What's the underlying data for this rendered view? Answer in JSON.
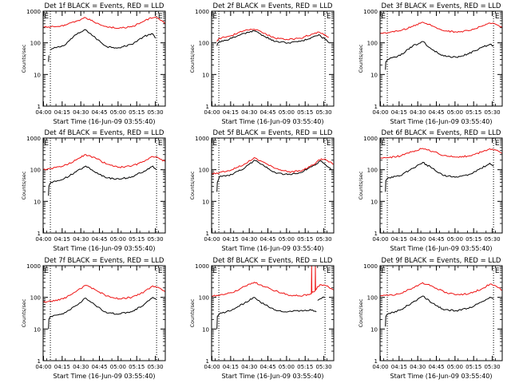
{
  "figure": {
    "colors": {
      "events": "#000000",
      "lld": "#ee1111",
      "axes": "#000000"
    }
  },
  "chart_data": [
    {
      "type": "line",
      "title": "Det 1f BLACK = Events, RED = LLD",
      "xlabel": "Start Time (16-Jun-09 03:55:40)",
      "ylabel": "Counts/sec",
      "xticks": [
        "04:00",
        "04:15",
        "04:30",
        "04:45",
        "05:00",
        "05:15",
        "05:30"
      ],
      "yticks": [
        "1",
        "10",
        "100",
        "1000"
      ],
      "yscale": "log",
      "ylim": [
        1,
        1000
      ],
      "xlim_minutes": [
        3.67,
        102
      ],
      "markers": [
        {
          "minute": 9.5
        },
        {
          "minute": 95
        }
      ],
      "flags": [
        {
          "minute": 3.9,
          "label": "E"
        },
        {
          "minute": 95.5,
          "label": "E"
        }
      ],
      "series": [
        {
          "name": "BLACK",
          "gaps": [
            9.5
          ],
          "x": [
            8,
            8.3,
            9.5,
            11,
            20,
            30,
            38,
            46,
            55,
            65,
            75,
            85,
            92,
            94
          ],
          "y": [
            25,
            40,
            60,
            65,
            80,
            180,
            260,
            140,
            75,
            70,
            90,
            160,
            190,
            140
          ]
        },
        {
          "name": "RED",
          "x": [
            3.67,
            10,
            20,
            30,
            38,
            45,
            55,
            65,
            75,
            85,
            90,
            95,
            98,
            102
          ],
          "y": [
            310,
            320,
            340,
            480,
            620,
            450,
            320,
            290,
            320,
            480,
            620,
            640,
            520,
            400
          ]
        }
      ]
    },
    {
      "type": "line",
      "title": "Det 2f BLACK = Events, RED = LLD",
      "xlabel": "Start Time (16-Jun-09 03:55:40)",
      "ylabel": "Counts/sec",
      "xticks": [
        "04:00",
        "04:15",
        "04:30",
        "04:45",
        "05:00",
        "05:15",
        "05:30"
      ],
      "yticks": [
        "1",
        "10",
        "100",
        "1000"
      ],
      "yscale": "log",
      "ylim": [
        1,
        1000
      ],
      "xlim_minutes": [
        3.67,
        102
      ],
      "markers": [
        {
          "minute": 9.5
        },
        {
          "minute": 95
        }
      ],
      "flags": [
        {
          "minute": 3.9,
          "label": "E"
        },
        {
          "minute": 95.5,
          "label": "E"
        }
      ],
      "series": [
        {
          "name": "BLACK",
          "x": [
            8,
            8.5,
            10,
            15,
            20,
            25,
            30,
            38,
            46,
            55,
            65,
            75,
            85,
            90,
            95,
            98
          ],
          "y": [
            80,
            95,
            110,
            120,
            140,
            170,
            200,
            240,
            160,
            110,
            100,
            110,
            150,
            180,
            130,
            100
          ]
        },
        {
          "name": "RED",
          "x": [
            8,
            8.5,
            10,
            15,
            20,
            25,
            30,
            38,
            46,
            55,
            65,
            75,
            85,
            90,
            95,
            98
          ],
          "y": [
            110,
            120,
            140,
            150,
            170,
            210,
            240,
            270,
            200,
            140,
            125,
            140,
            190,
            220,
            180,
            150
          ]
        }
      ]
    },
    {
      "type": "line",
      "title": "Det 3f BLACK = Events, RED = LLD",
      "xlabel": "Start Time (16-Jun-09 03:55:40)",
      "ylabel": "Counts/sec",
      "xticks": [
        "04:00",
        "04:15",
        "04:30",
        "04:45",
        "05:00",
        "05:15",
        "05:30"
      ],
      "yticks": [
        "1",
        "10",
        "100",
        "1000"
      ],
      "yscale": "log",
      "ylim": [
        1,
        1000
      ],
      "xlim_minutes": [
        3.67,
        102
      ],
      "markers": [
        {
          "minute": 9.5
        },
        {
          "minute": 95
        }
      ],
      "flags": [
        {
          "minute": 3.9,
          "label": "E"
        },
        {
          "minute": 95.5,
          "label": "E"
        }
      ],
      "series": [
        {
          "name": "BLACK",
          "x": [
            8,
            8.3,
            10,
            20,
            30,
            38,
            46,
            55,
            65,
            75,
            85,
            92,
            95
          ],
          "y": [
            14,
            25,
            30,
            40,
            80,
            110,
            60,
            38,
            35,
            45,
            70,
            90,
            80
          ]
        },
        {
          "name": "RED",
          "x": [
            3.67,
            10,
            20,
            30,
            38,
            46,
            55,
            65,
            75,
            85,
            92,
            96,
            102
          ],
          "y": [
            200,
            210,
            240,
            330,
            450,
            340,
            240,
            220,
            240,
            330,
            420,
            400,
            300
          ]
        }
      ]
    },
    {
      "type": "line",
      "title": "Det 4f BLACK = Events, RED = LLD",
      "xlabel": "Start Time (16-Jun-09 03:55:40)",
      "ylabel": "Counts/sec",
      "xticks": [
        "04:00",
        "04:15",
        "04:30",
        "04:45",
        "05:00",
        "05:15",
        "05:30"
      ],
      "yticks": [
        "1",
        "10",
        "100",
        "1000"
      ],
      "yscale": "log",
      "ylim": [
        1,
        1000
      ],
      "xlim_minutes": [
        3.67,
        102
      ],
      "markers": [
        {
          "minute": 9.5
        },
        {
          "minute": 95
        }
      ],
      "flags": [
        {
          "minute": 3.9,
          "label": "E"
        },
        {
          "minute": 95.5,
          "label": "E"
        }
      ],
      "series": [
        {
          "name": "BLACK",
          "x": [
            8,
            8.3,
            10,
            20,
            30,
            38,
            46,
            55,
            65,
            75,
            85,
            92,
            95
          ],
          "y": [
            15,
            30,
            40,
            50,
            85,
            130,
            80,
            55,
            50,
            60,
            90,
            130,
            100
          ]
        },
        {
          "name": "RED",
          "x": [
            3.67,
            10,
            20,
            30,
            38,
            46,
            55,
            65,
            75,
            85,
            92,
            96,
            102
          ],
          "y": [
            100,
            110,
            130,
            200,
            300,
            230,
            150,
            120,
            130,
            180,
            260,
            240,
            180
          ]
        }
      ]
    },
    {
      "type": "line",
      "title": "Det 5f BLACK = Events, RED = LLD",
      "xlabel": "Start Time (16-Jun-09 03:55:40)",
      "ylabel": "Counts/sec",
      "xticks": [
        "04:00",
        "04:15",
        "04:30",
        "04:45",
        "05:00",
        "05:15",
        "05:30"
      ],
      "yticks": [
        "1",
        "10",
        "100",
        "1000"
      ],
      "yscale": "log",
      "ylim": [
        1,
        1000
      ],
      "xlim_minutes": [
        3.67,
        102
      ],
      "markers": [
        {
          "minute": 9.5
        },
        {
          "minute": 95
        }
      ],
      "flags": [
        {
          "minute": 3.9,
          "label": "E"
        },
        {
          "minute": 95.5,
          "label": "E"
        }
      ],
      "series": [
        {
          "name": "BLACK",
          "x": [
            8,
            8.3,
            10,
            20,
            30,
            38,
            46,
            55,
            65,
            75,
            85,
            92,
            95,
            100
          ],
          "y": [
            20,
            40,
            60,
            70,
            110,
            200,
            130,
            80,
            70,
            80,
            130,
            190,
            150,
            100
          ]
        },
        {
          "name": "RED",
          "x": [
            3.67,
            10,
            20,
            30,
            38,
            46,
            55,
            65,
            75,
            85,
            92,
            96,
            102
          ],
          "y": [
            75,
            80,
            100,
            150,
            240,
            170,
            110,
            85,
            90,
            140,
            220,
            200,
            150
          ]
        }
      ]
    },
    {
      "type": "line",
      "title": "Det 6f BLACK = Events, RED = LLD",
      "xlabel": "Start Time (16-Jun-09 03:55:40)",
      "ylabel": "Counts/sec",
      "xticks": [
        "04:00",
        "04:15",
        "04:30",
        "04:45",
        "05:00",
        "05:15",
        "05:30"
      ],
      "yticks": [
        "1",
        "10",
        "100",
        "1000"
      ],
      "yscale": "log",
      "ylim": [
        1,
        1000
      ],
      "xlim_minutes": [
        3.67,
        102
      ],
      "markers": [
        {
          "minute": 9.5
        },
        {
          "minute": 95
        }
      ],
      "flags": [
        {
          "minute": 3.9,
          "label": "E"
        },
        {
          "minute": 95.5,
          "label": "E"
        }
      ],
      "series": [
        {
          "name": "BLACK",
          "x": [
            8,
            8.3,
            10,
            20,
            30,
            38,
            46,
            55,
            65,
            75,
            85,
            92,
            95
          ],
          "y": [
            20,
            45,
            55,
            65,
            110,
            170,
            110,
            65,
            60,
            70,
            110,
            160,
            130
          ]
        },
        {
          "name": "RED",
          "x": [
            3.67,
            10,
            20,
            30,
            38,
            46,
            55,
            65,
            75,
            85,
            92,
            96,
            102
          ],
          "y": [
            230,
            240,
            270,
            380,
            470,
            380,
            280,
            250,
            270,
            360,
            460,
            430,
            330
          ]
        }
      ]
    },
    {
      "type": "line",
      "title": "Det 7f BLACK = Events, RED = LLD",
      "xlabel": "Start Time (16-Jun-09 03:55:40)",
      "ylabel": "Counts/sec",
      "xticks": [
        "04:00",
        "04:15",
        "04:30",
        "04:45",
        "05:00",
        "05:15",
        "05:30"
      ],
      "yticks": [
        "1",
        "10",
        "100",
        "1000"
      ],
      "yscale": "log",
      "ylim": [
        1,
        1000
      ],
      "xlim_minutes": [
        3.67,
        102
      ],
      "markers": [
        {
          "minute": 9.5
        },
        {
          "minute": 95
        }
      ],
      "flags": [
        {
          "minute": 3.9,
          "label": "E"
        },
        {
          "minute": 95.5,
          "label": "E"
        }
      ],
      "series": [
        {
          "name": "BLACK",
          "x": [
            8,
            8.3,
            10,
            20,
            30,
            38,
            46,
            55,
            65,
            75,
            85,
            92,
            95
          ],
          "y": [
            10,
            20,
            25,
            30,
            55,
            95,
            55,
            32,
            30,
            35,
            60,
            100,
            85
          ]
        },
        {
          "name": "RED",
          "x": [
            3.67,
            10,
            20,
            30,
            38,
            46,
            55,
            65,
            75,
            85,
            92,
            96,
            102
          ],
          "y": [
            70,
            75,
            90,
            150,
            240,
            170,
            110,
            90,
            100,
            150,
            230,
            210,
            150
          ]
        }
      ]
    },
    {
      "type": "line",
      "title": "Det 8f BLACK = Events, RED = LLD",
      "xlabel": "Start Time (16-Jun-09 03:55:40)",
      "ylabel": "Counts/sec",
      "xticks": [
        "04:00",
        "04:15",
        "04:30",
        "04:45",
        "05:00",
        "05:15",
        "05:30"
      ],
      "yticks": [
        "1",
        "10",
        "100",
        "1000"
      ],
      "yscale": "log",
      "ylim": [
        1,
        1000
      ],
      "xlim_minutes": [
        3.67,
        102
      ],
      "markers": [
        {
          "minute": 9.5
        },
        {
          "minute": 95
        }
      ],
      "flags": [
        {
          "minute": 3.9,
          "label": "E"
        },
        {
          "minute": 95.5,
          "label": "E"
        }
      ],
      "series": [
        {
          "name": "BLACK",
          "gaps": [
            89
          ],
          "x": [
            8,
            8.3,
            10,
            20,
            30,
            38,
            46,
            55,
            65,
            75,
            85,
            88,
            89,
            91,
            95
          ],
          "y": [
            10,
            25,
            30,
            40,
            65,
            100,
            60,
            40,
            35,
            38,
            40,
            35,
            80,
            90,
            100
          ]
        },
        {
          "name": "RED",
          "x": [
            3.67,
            10,
            20,
            30,
            38,
            46,
            55,
            65,
            75,
            84,
            84.2,
            84.4,
            85,
            87,
            87.2,
            87.4,
            89,
            92,
            96,
            102
          ],
          "y": [
            110,
            115,
            140,
            220,
            300,
            220,
            160,
            120,
            110,
            130,
            1000,
            140,
            150,
            160,
            1000,
            170,
            220,
            250,
            230,
            170
          ]
        }
      ]
    },
    {
      "type": "line",
      "title": "Det 9f BLACK = Events, RED = LLD",
      "xlabel": "Start Time (16-Jun-09 03:55:40)",
      "ylabel": "Counts/sec",
      "xticks": [
        "04:00",
        "04:15",
        "04:30",
        "04:45",
        "05:00",
        "05:15",
        "05:30"
      ],
      "yticks": [
        "1",
        "10",
        "100",
        "1000"
      ],
      "yscale": "log",
      "ylim": [
        1,
        1000
      ],
      "xlim_minutes": [
        3.67,
        102
      ],
      "markers": [
        {
          "minute": 9.5
        },
        {
          "minute": 95
        }
      ],
      "flags": [
        {
          "minute": 3.9,
          "label": "E"
        },
        {
          "minute": 95.5,
          "label": "E"
        }
      ],
      "series": [
        {
          "name": "BLACK",
          "x": [
            8,
            8.3,
            10,
            20,
            30,
            38,
            46,
            55,
            65,
            75,
            85,
            92,
            95
          ],
          "y": [
            12,
            25,
            30,
            40,
            70,
            110,
            65,
            40,
            38,
            45,
            70,
            100,
            90
          ]
        },
        {
          "name": "RED",
          "x": [
            3.67,
            10,
            20,
            30,
            38,
            46,
            55,
            65,
            75,
            85,
            92,
            96,
            102
          ],
          "y": [
            110,
            115,
            130,
            200,
            290,
            220,
            150,
            120,
            130,
            180,
            260,
            240,
            170
          ]
        }
      ]
    }
  ]
}
